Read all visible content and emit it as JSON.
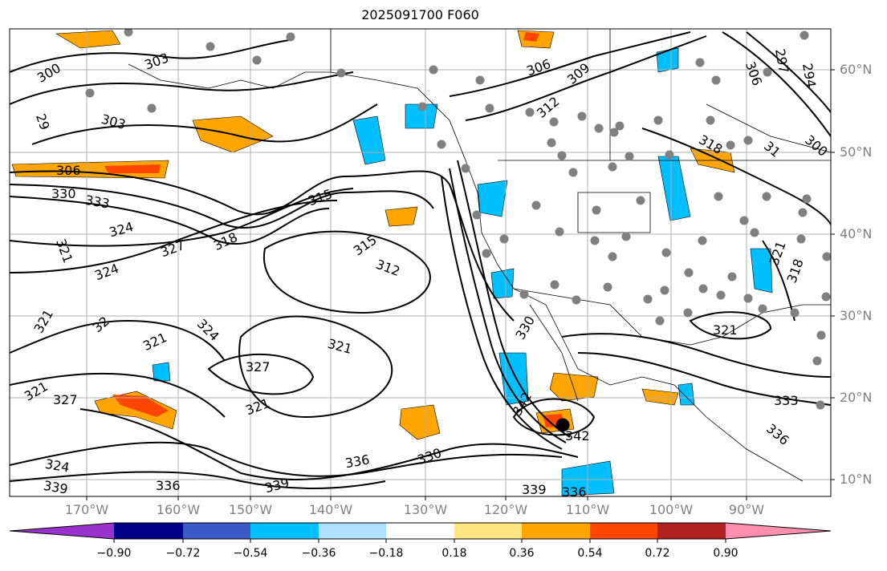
{
  "title": "2025091700 F060",
  "latitude_labels": [
    "60°N",
    "50°N",
    "40°N",
    "30°N",
    "20°N",
    "10°N"
  ],
  "longitude_labels": [
    "170°W",
    "160°W",
    "150°W",
    "140°W",
    "130°W",
    "120°W",
    "110°W",
    "100°W",
    "90°W"
  ],
  "colorbar": {
    "ticks": [
      "−0.90",
      "−0.72",
      "−0.54",
      "−0.36",
      "−0.18",
      "0.18",
      "0.36",
      "0.54",
      "0.72",
      "0.90"
    ],
    "colors": [
      "#9932cc",
      "#00008b",
      "#3a5bc7",
      "#00bfff",
      "#b0e2ff",
      "#ffffff",
      "#ffe680",
      "#ffa500",
      "#ff4500",
      "#b22222",
      "#ff8fb1"
    ]
  },
  "contour_labels": [
    "300",
    "303",
    "29",
    "303",
    "306",
    "330",
    "333",
    "324",
    "327",
    "318",
    "315",
    "321",
    "324",
    "321",
    "32",
    "321",
    "324",
    "327",
    "321",
    "321",
    "315",
    "312",
    "321",
    "327",
    "324",
    "339",
    "336",
    "339",
    "336",
    "330",
    "342",
    "339",
    "336",
    "330",
    "342",
    "306",
    "309",
    "312",
    "297",
    "294",
    "306",
    "318",
    "31",
    "300",
    "321",
    "318",
    "321",
    "333",
    "336"
  ],
  "colors": {
    "map_background": "#ffffff",
    "gridline": "#b0b0b0",
    "contour": "#000000",
    "station_dot": "#808080"
  }
}
